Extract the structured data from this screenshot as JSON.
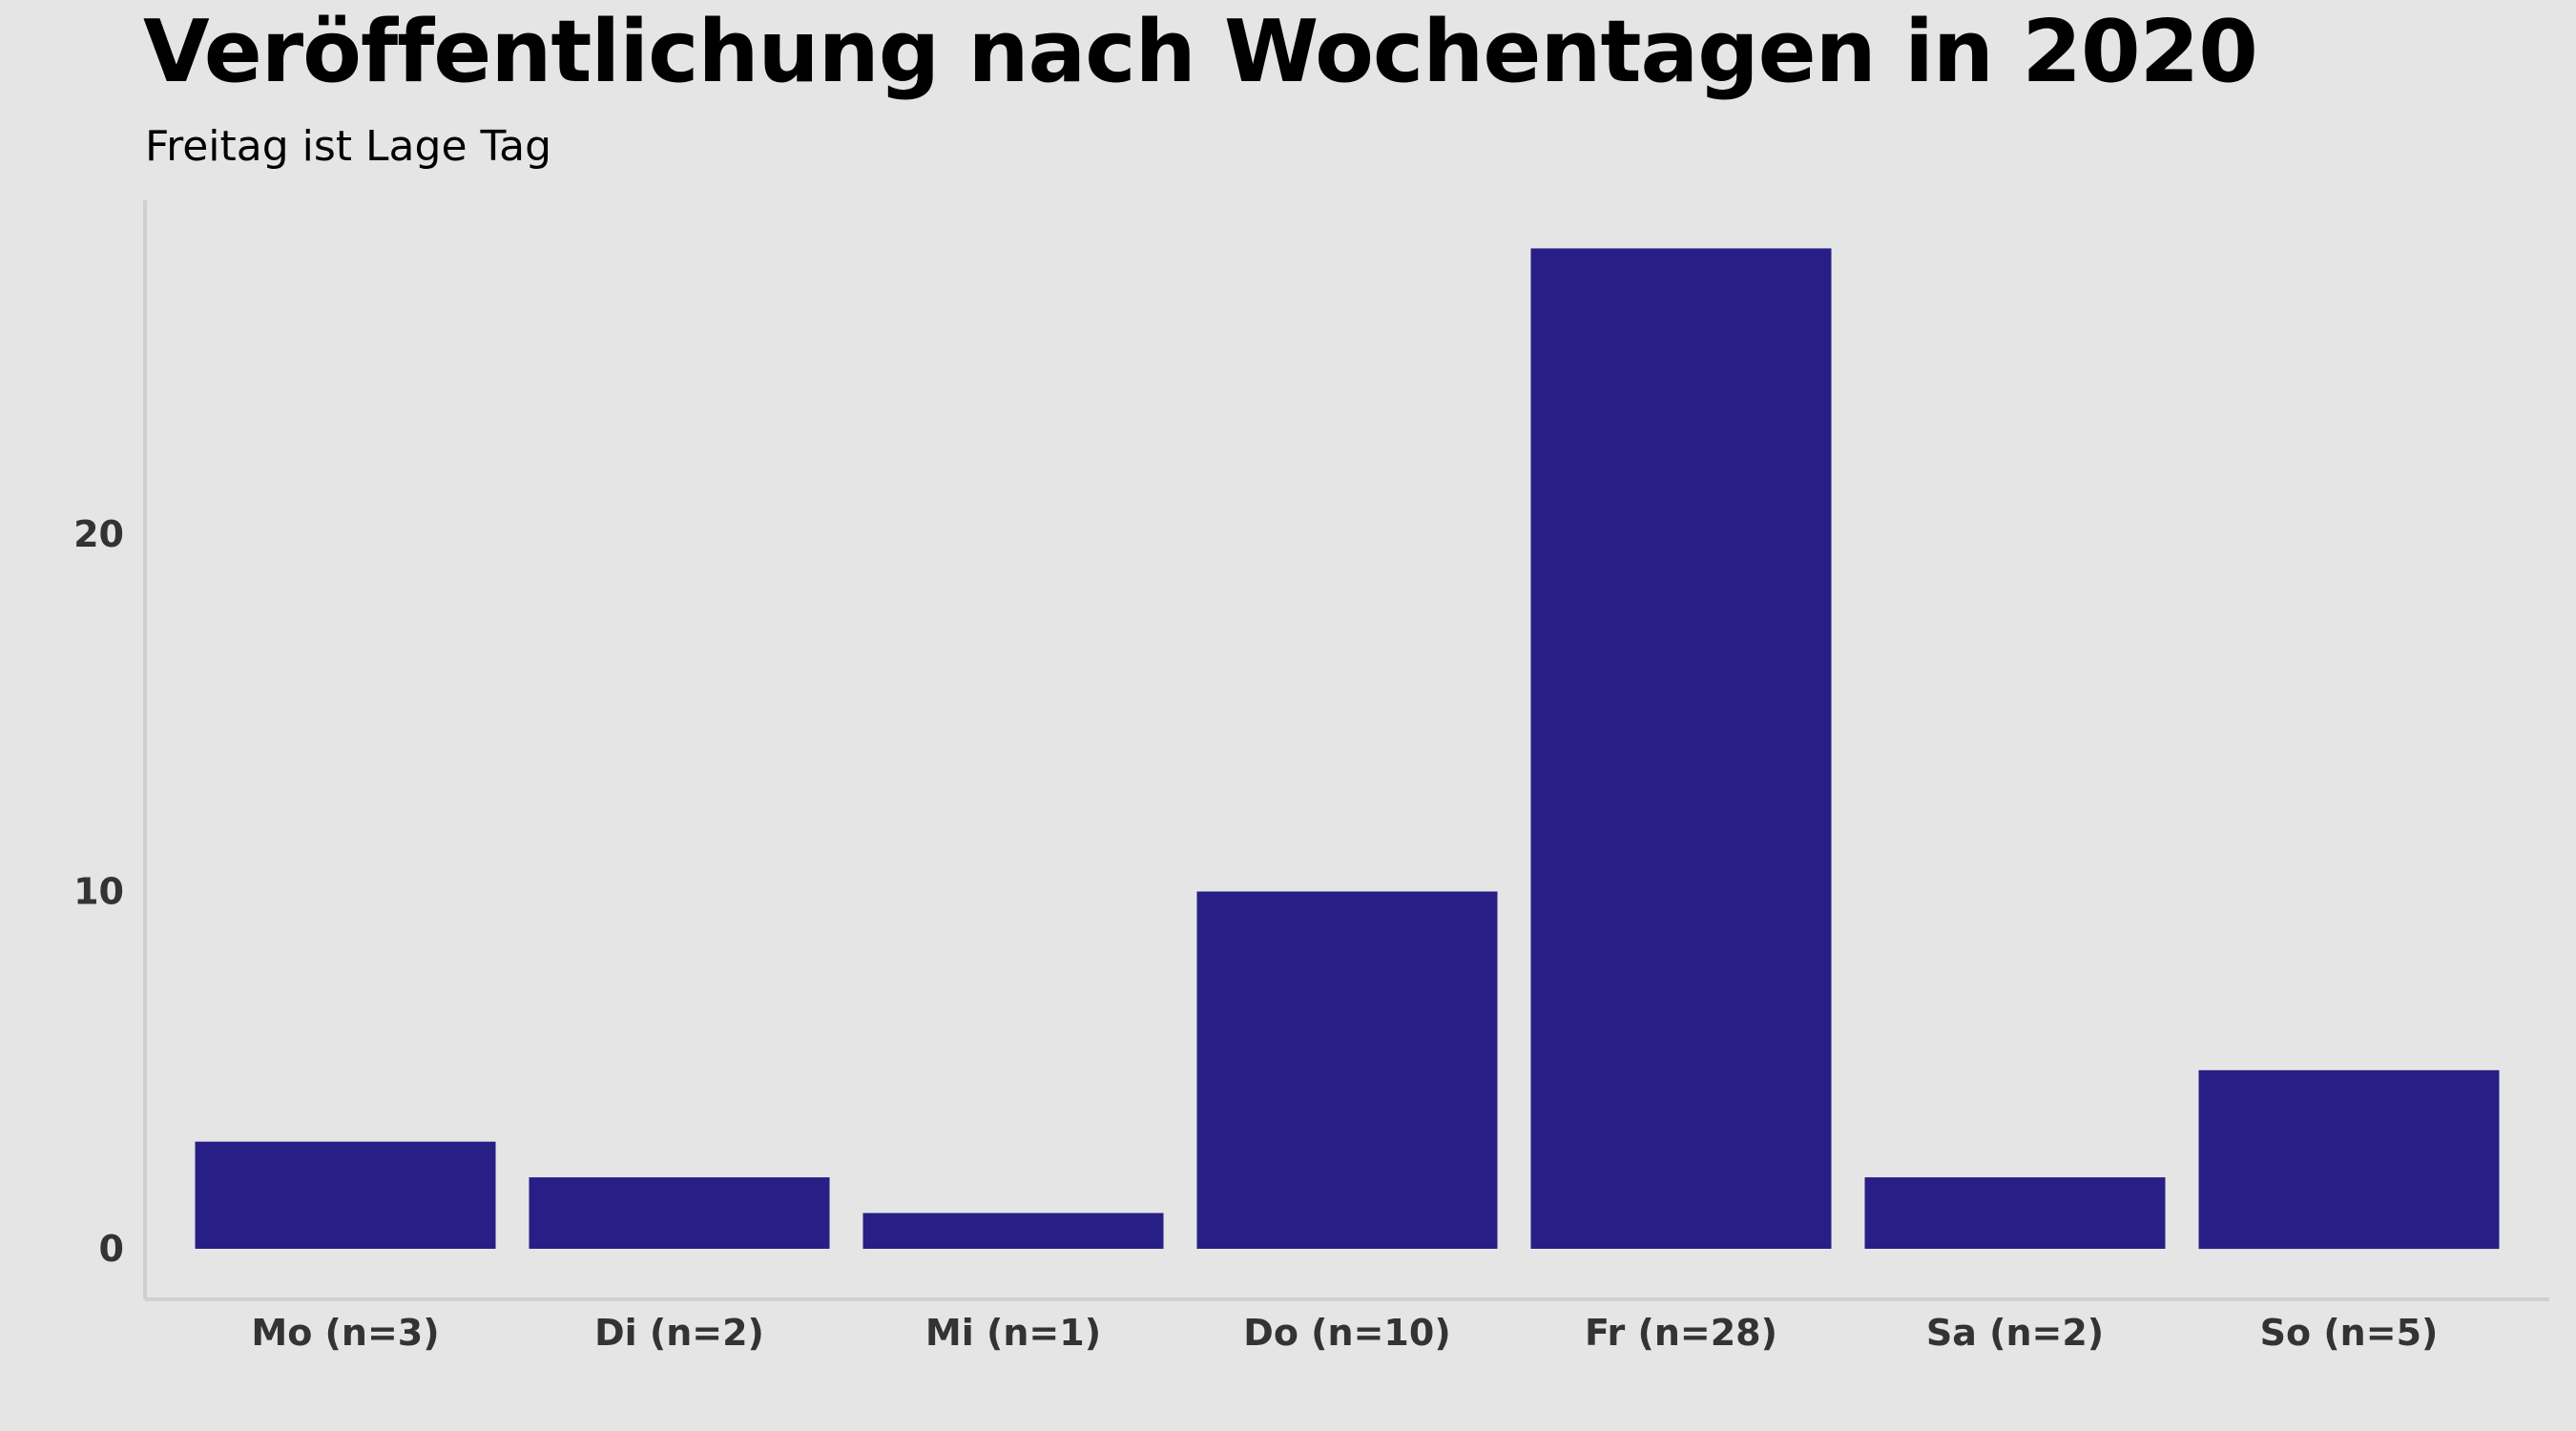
{
  "title": "Veröffentlichung nach Wochentagen in 2020",
  "subtitle": "Freitag ist Lage Tag",
  "colors": {
    "background": "#e5e5e5",
    "bar": "#271f85",
    "axis": "#d0d0d0",
    "tick_text": "#333333",
    "title_text": "#000000"
  },
  "chart_data": {
    "type": "bar",
    "title": "Veröffentlichung nach Wochentagen in 2020",
    "subtitle": "Freitag ist Lage Tag",
    "xlabel": "",
    "ylabel": "",
    "categories": [
      "Mo (n=3)",
      "Di (n=2)",
      "Mi (n=1)",
      "Do (n=10)",
      "Fr (n=28)",
      "Sa (n=2)",
      "So (n=5)"
    ],
    "values": [
      3,
      2,
      1,
      10,
      28,
      2,
      5
    ],
    "ylim": [
      0,
      29.4
    ],
    "yticks": [
      0,
      10,
      20
    ],
    "ytick_labels": [
      "0",
      "10",
      "20"
    ],
    "grid": false,
    "legend": "none"
  }
}
